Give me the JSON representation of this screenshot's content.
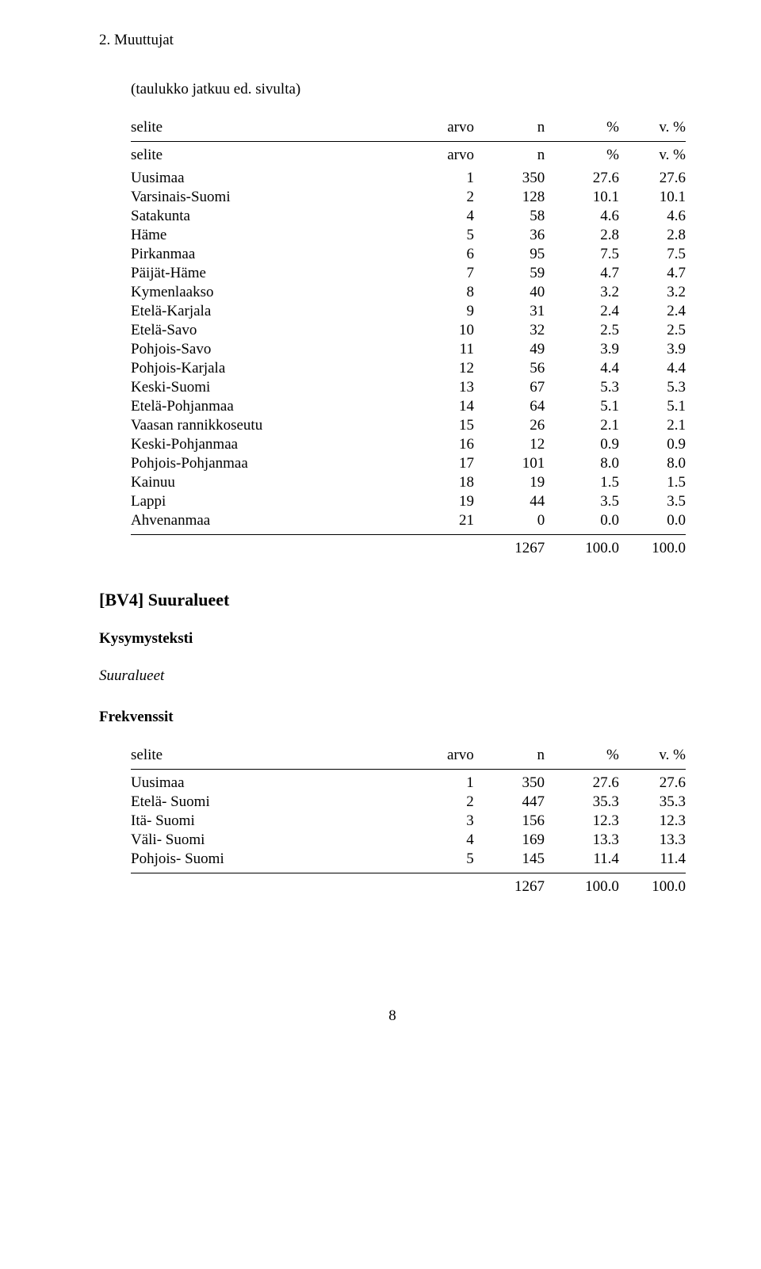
{
  "header": "2. Muuttujat",
  "continuation": "(taulukko jatkuu ed. sivulta)",
  "table1": {
    "headers": {
      "label": "selite",
      "arvo": "arvo",
      "n": "n",
      "pct": "%",
      "vpct": "v. %"
    },
    "rows": [
      {
        "label": "Uusimaa",
        "arvo": "1",
        "n": "350",
        "pct": "27.6",
        "vpct": "27.6"
      },
      {
        "label": "Varsinais-Suomi",
        "arvo": "2",
        "n": "128",
        "pct": "10.1",
        "vpct": "10.1"
      },
      {
        "label": "Satakunta",
        "arvo": "4",
        "n": "58",
        "pct": "4.6",
        "vpct": "4.6"
      },
      {
        "label": "Häme",
        "arvo": "5",
        "n": "36",
        "pct": "2.8",
        "vpct": "2.8"
      },
      {
        "label": "Pirkanmaa",
        "arvo": "6",
        "n": "95",
        "pct": "7.5",
        "vpct": "7.5"
      },
      {
        "label": "Päijät-Häme",
        "arvo": "7",
        "n": "59",
        "pct": "4.7",
        "vpct": "4.7"
      },
      {
        "label": "Kymenlaakso",
        "arvo": "8",
        "n": "40",
        "pct": "3.2",
        "vpct": "3.2"
      },
      {
        "label": "Etelä-Karjala",
        "arvo": "9",
        "n": "31",
        "pct": "2.4",
        "vpct": "2.4"
      },
      {
        "label": "Etelä-Savo",
        "arvo": "10",
        "n": "32",
        "pct": "2.5",
        "vpct": "2.5"
      },
      {
        "label": "Pohjois-Savo",
        "arvo": "11",
        "n": "49",
        "pct": "3.9",
        "vpct": "3.9"
      },
      {
        "label": "Pohjois-Karjala",
        "arvo": "12",
        "n": "56",
        "pct": "4.4",
        "vpct": "4.4"
      },
      {
        "label": "Keski-Suomi",
        "arvo": "13",
        "n": "67",
        "pct": "5.3",
        "vpct": "5.3"
      },
      {
        "label": "Etelä-Pohjanmaa",
        "arvo": "14",
        "n": "64",
        "pct": "5.1",
        "vpct": "5.1"
      },
      {
        "label": "Vaasan rannikkoseutu",
        "arvo": "15",
        "n": "26",
        "pct": "2.1",
        "vpct": "2.1"
      },
      {
        "label": "Keski-Pohjanmaa",
        "arvo": "16",
        "n": "12",
        "pct": "0.9",
        "vpct": "0.9"
      },
      {
        "label": "Pohjois-Pohjanmaa",
        "arvo": "17",
        "n": "101",
        "pct": "8.0",
        "vpct": "8.0"
      },
      {
        "label": "Kainuu",
        "arvo": "18",
        "n": "19",
        "pct": "1.5",
        "vpct": "1.5"
      },
      {
        "label": "Lappi",
        "arvo": "19",
        "n": "44",
        "pct": "3.5",
        "vpct": "3.5"
      },
      {
        "label": "Ahvenanmaa",
        "arvo": "21",
        "n": "0",
        "pct": "0.0",
        "vpct": "0.0"
      }
    ],
    "total": {
      "n": "1267",
      "pct": "100.0",
      "vpct": "100.0"
    }
  },
  "section": {
    "title": "[BV4] Suuralueet",
    "kysymys_label": "Kysymysteksti",
    "kysymys_value": "Suuralueet",
    "freq_label": "Frekvenssit"
  },
  "table2": {
    "headers": {
      "label": "selite",
      "arvo": "arvo",
      "n": "n",
      "pct": "%",
      "vpct": "v. %"
    },
    "rows": [
      {
        "label": "Uusimaa",
        "arvo": "1",
        "n": "350",
        "pct": "27.6",
        "vpct": "27.6"
      },
      {
        "label": "Etelä- Suomi",
        "arvo": "2",
        "n": "447",
        "pct": "35.3",
        "vpct": "35.3"
      },
      {
        "label": "Itä- Suomi",
        "arvo": "3",
        "n": "156",
        "pct": "12.3",
        "vpct": "12.3"
      },
      {
        "label": "Väli- Suomi",
        "arvo": "4",
        "n": "169",
        "pct": "13.3",
        "vpct": "13.3"
      },
      {
        "label": "Pohjois- Suomi",
        "arvo": "5",
        "n": "145",
        "pct": "11.4",
        "vpct": "11.4"
      }
    ],
    "total": {
      "n": "1267",
      "pct": "100.0",
      "vpct": "100.0"
    }
  },
  "page_number": "8"
}
